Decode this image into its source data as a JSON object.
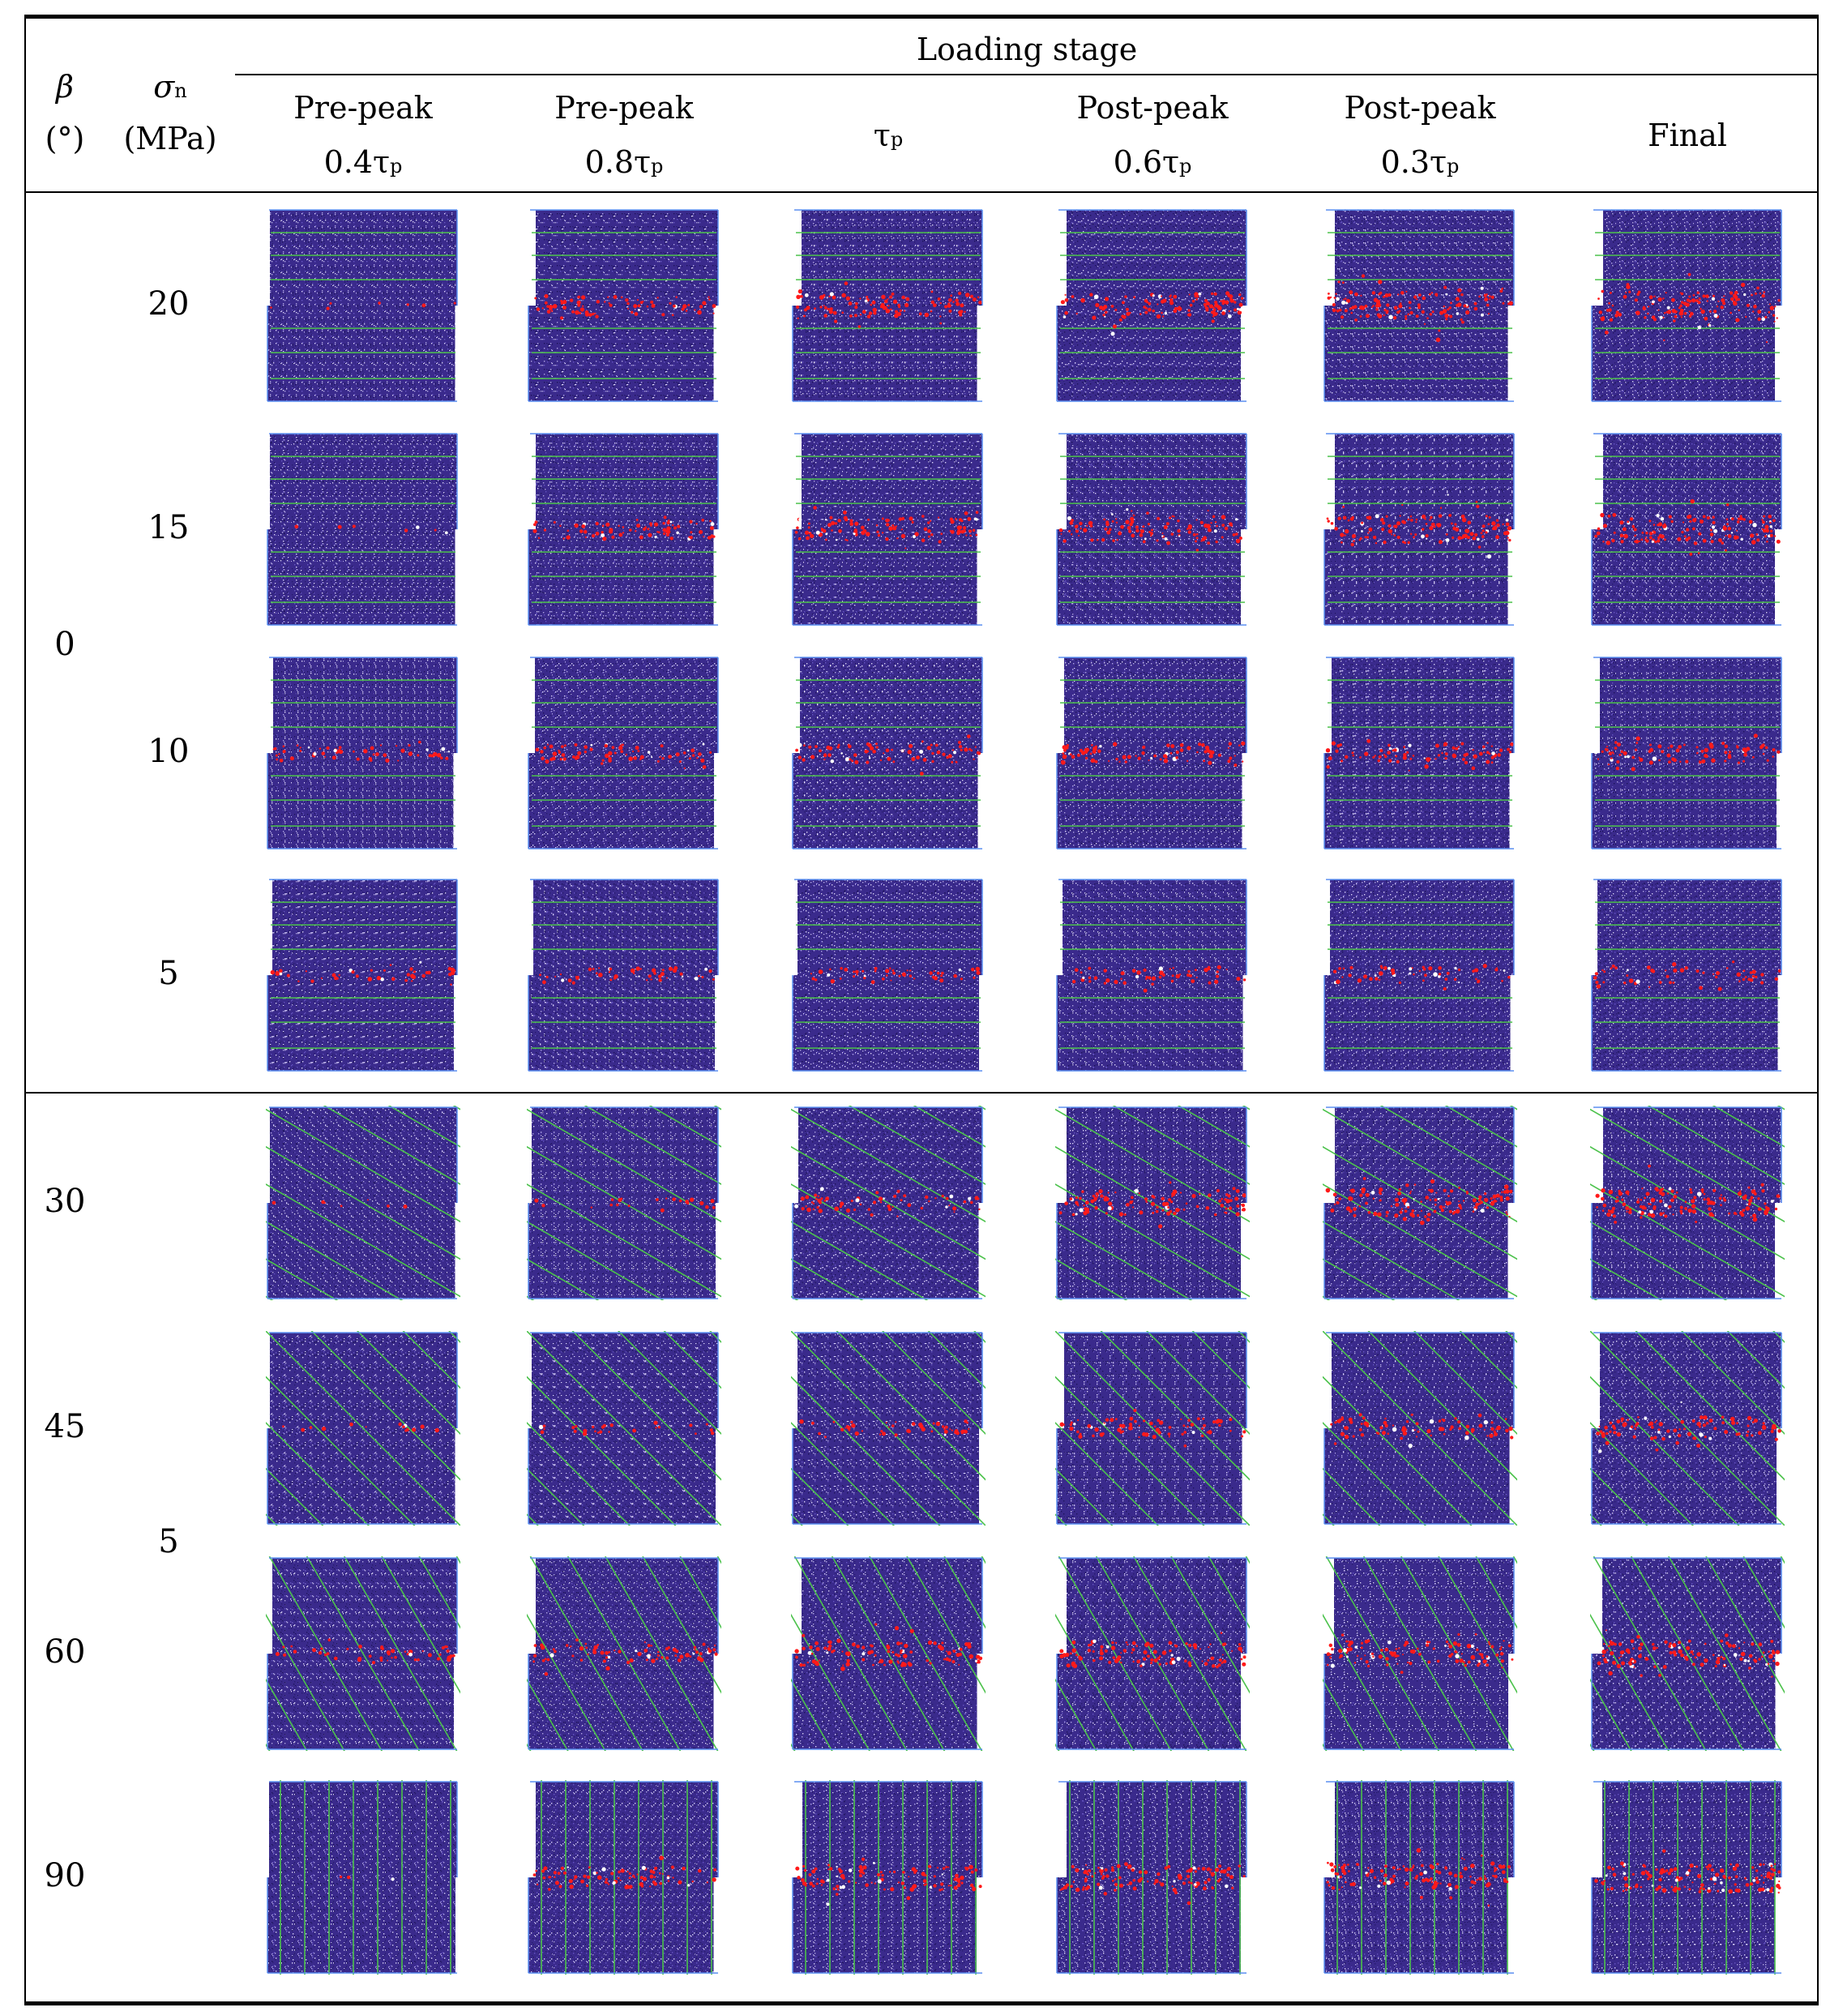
{
  "header": {
    "beta_symbol": "β",
    "beta_unit": "(°)",
    "sigma_symbol": "σ",
    "sigma_sub": "n",
    "sigma_unit": "(MPa)",
    "loading_stage": "Loading stage",
    "stages": [
      {
        "line1": "Pre-peak",
        "coef": "0.4τ",
        "sub": "p"
      },
      {
        "line1": "Pre-peak",
        "coef": "0.8τ",
        "sub": "p"
      },
      {
        "line1": "",
        "coef": "τ",
        "sub": "p"
      },
      {
        "line1": "Post-peak",
        "coef": "0.6τ",
        "sub": "p"
      },
      {
        "line1": "Post-peak",
        "coef": "0.3τ",
        "sub": "p"
      },
      {
        "line1": "Final",
        "coef": "",
        "sub": ""
      }
    ]
  },
  "rows": [
    {
      "beta": "",
      "sigma": "20",
      "angle": 0,
      "crack": [
        0.05,
        0.55,
        0.75,
        0.85,
        0.95,
        1.0
      ]
    },
    {
      "beta": "",
      "sigma": "15",
      "angle": 0,
      "crack": [
        0.05,
        0.55,
        0.75,
        0.85,
        0.95,
        1.0
      ]
    },
    {
      "beta": "",
      "sigma": "10",
      "angle": 0,
      "crack": [
        0.4,
        0.5,
        0.55,
        0.6,
        0.6,
        0.65
      ]
    },
    {
      "beta": "",
      "sigma": "5",
      "angle": 0,
      "crack": [
        0.3,
        0.35,
        0.35,
        0.4,
        0.4,
        0.4
      ]
    },
    {
      "beta": "30",
      "sigma": "",
      "angle": 30,
      "crack": [
        0.05,
        0.15,
        0.45,
        0.8,
        0.95,
        1.0
      ]
    },
    {
      "beta": "45",
      "sigma": "",
      "angle": 45,
      "crack": [
        0.1,
        0.2,
        0.35,
        0.55,
        0.6,
        0.7
      ]
    },
    {
      "beta": "60",
      "sigma": "",
      "angle": 60,
      "crack": [
        0.35,
        0.55,
        0.75,
        0.8,
        0.85,
        0.9
      ]
    },
    {
      "beta": "90",
      "sigma": "",
      "angle": 90,
      "crack": [
        0.02,
        0.6,
        0.8,
        0.85,
        0.9,
        0.95
      ]
    }
  ],
  "group_labels": {
    "beta_group1": "0",
    "sigma_group2": "5"
  },
  "colors": {
    "specimen": "#3a2a8c",
    "joint": "#4cc24c",
    "crack": "#ff1a1a",
    "frame": "#5b8ff0"
  }
}
